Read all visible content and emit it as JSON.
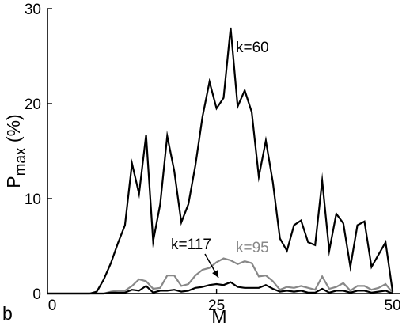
{
  "chart_data": {
    "type": "line",
    "panel_label": "b",
    "xlabel": "M",
    "ylabel": {
      "main": "P",
      "subscript": "max",
      "suffix": " (%)"
    },
    "xlim": [
      1,
      51
    ],
    "ylim": [
      0,
      30
    ],
    "xticks": [
      0,
      25,
      50
    ],
    "yticks": [
      0,
      10,
      20,
      30
    ],
    "grid": false,
    "legend": "none",
    "colors": {
      "black": "#000000",
      "gray": "#888888"
    },
    "x": [
      1,
      2,
      3,
      4,
      5,
      6,
      7,
      8,
      9,
      10,
      11,
      12,
      13,
      14,
      15,
      16,
      17,
      18,
      19,
      20,
      21,
      22,
      23,
      24,
      25,
      26,
      27,
      28,
      29,
      30,
      31,
      32,
      33,
      34,
      35,
      36,
      37,
      38,
      39,
      40,
      41,
      42,
      43,
      44,
      45,
      46,
      47,
      48,
      49,
      50
    ],
    "series": [
      {
        "name": "",
        "color": "#000000",
        "values": [
          0,
          0,
          0,
          0,
          0,
          0,
          0,
          0.2,
          1.5,
          3.2,
          5.3,
          7.2,
          13.7,
          10.5,
          16.7,
          5.5,
          9.4,
          16.6,
          12.9,
          7.5,
          9.4,
          13.5,
          18.6,
          22.3,
          19.5,
          20.6,
          28,
          19.7,
          21.4,
          19.1,
          12.3,
          16.1,
          11.7,
          5.8,
          4.5,
          7.2,
          7.7,
          5.4,
          5.1,
          11.9,
          4.5,
          8.4,
          7.4,
          2.8,
          7.2,
          7.6,
          2.8,
          4.1,
          5.4,
          0.2
        ]
      },
      {
        "name": "",
        "color": "#888888",
        "values": [
          0,
          0,
          0,
          0,
          0,
          0,
          0,
          0,
          0,
          0.2,
          0.3,
          0.3,
          0.8,
          1.5,
          1.3,
          0.5,
          0.6,
          1.9,
          1.9,
          0.8,
          1,
          1.9,
          2.5,
          2.7,
          3.3,
          3.7,
          3.5,
          3.1,
          3.4,
          3.2,
          1.8,
          1.9,
          1.3,
          0.4,
          0.7,
          0.6,
          0.8,
          0.6,
          0.4,
          1.8,
          0.5,
          0.7,
          1.1,
          0.3,
          0.8,
          0.8,
          0.4,
          0.6,
          1,
          0.1
        ]
      },
      {
        "name": "",
        "color": "#000000",
        "values": [
          0,
          0,
          0,
          0,
          0,
          0,
          0,
          0,
          0,
          0.1,
          0.1,
          0.1,
          0.4,
          0.3,
          0.8,
          0.1,
          0.3,
          0.3,
          0.4,
          0.2,
          0.3,
          0.6,
          0.7,
          0.9,
          1,
          0.9,
          1.2,
          0.7,
          0.6,
          0.6,
          0.6,
          0.9,
          0.5,
          0.2,
          0.3,
          0.2,
          0.3,
          0.1,
          0.1,
          0.5,
          0.1,
          0.3,
          0.3,
          0.1,
          0.3,
          0.3,
          0.1,
          0.2,
          0.3,
          0
        ]
      }
    ],
    "annotations": [
      {
        "text": "k=60",
        "color": "#000000"
      },
      {
        "text": "k=95",
        "color": "#888888"
      },
      {
        "text": "k=117",
        "color": "#000000"
      }
    ]
  }
}
